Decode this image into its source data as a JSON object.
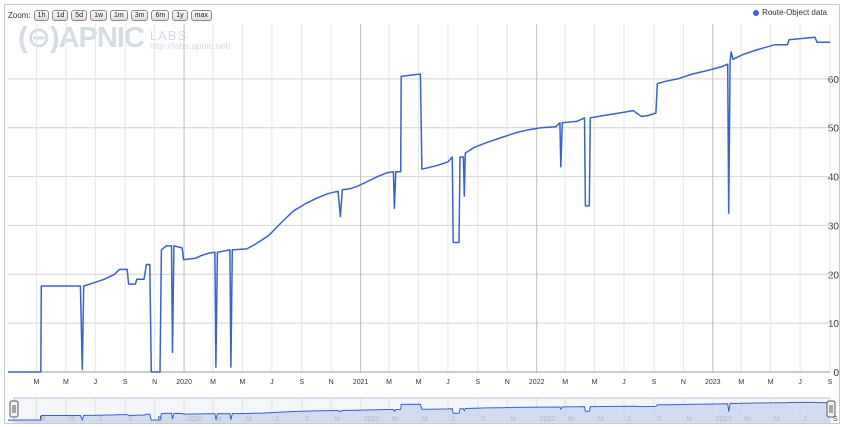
{
  "toolbar": {
    "zoom_label": "Zoom:",
    "buttons": [
      "1h",
      "1d",
      "5d",
      "1w",
      "1m",
      "3m",
      "6m",
      "1y",
      "max"
    ]
  },
  "watermark": {
    "logo": "(⊖)APNIC",
    "labs": "LABS",
    "url": "http://labs.apnic.net/"
  },
  "colors": {
    "series": "#3a62c9",
    "navigator_fill": "#c9d6ee",
    "grid": "#d4d4d4"
  },
  "chart_data": {
    "type": "line",
    "title": "",
    "xlabel": "",
    "ylabel": "",
    "legend": "top-right",
    "grid": true,
    "series": [
      {
        "name": "Route-Object data",
        "points": [
          [
            "2019-01-01",
            0
          ],
          [
            "2019-03-10",
            0
          ],
          [
            "2019-03-11",
            17.6
          ],
          [
            "2019-05-31",
            17.6
          ],
          [
            "2019-06-04",
            0.5
          ],
          [
            "2019-06-07",
            17.6
          ],
          [
            "2019-06-20",
            18
          ],
          [
            "2019-07-20",
            19
          ],
          [
            "2019-08-10",
            20
          ],
          [
            "2019-08-20",
            21
          ],
          [
            "2019-09-05",
            21
          ],
          [
            "2019-09-08",
            18
          ],
          [
            "2019-09-22",
            18
          ],
          [
            "2019-09-25",
            19
          ],
          [
            "2019-10-10",
            19
          ],
          [
            "2019-10-15",
            22
          ],
          [
            "2019-10-22",
            22
          ],
          [
            "2019-10-25",
            0
          ],
          [
            "2019-11-12",
            0
          ],
          [
            "2019-11-15",
            25
          ],
          [
            "2019-11-25",
            25.8
          ],
          [
            "2019-12-06",
            25.8
          ],
          [
            "2019-12-08",
            4
          ],
          [
            "2019-12-11",
            25.8
          ],
          [
            "2019-12-28",
            25.4
          ],
          [
            "2019-12-31",
            23
          ],
          [
            "2020-01-25",
            23.3
          ],
          [
            "2020-02-05",
            23.8
          ],
          [
            "2020-02-20",
            24.3
          ],
          [
            "2020-03-05",
            24.5
          ],
          [
            "2020-03-07",
            1
          ],
          [
            "2020-03-10",
            24.5
          ],
          [
            "2020-04-05",
            25
          ],
          [
            "2020-04-07",
            1
          ],
          [
            "2020-04-10",
            25
          ],
          [
            "2020-05-10",
            25.2
          ],
          [
            "2020-05-25",
            26
          ],
          [
            "2020-06-10",
            27
          ],
          [
            "2020-06-25",
            28
          ],
          [
            "2020-07-10",
            29.5
          ],
          [
            "2020-07-25",
            31
          ],
          [
            "2020-08-15",
            33
          ],
          [
            "2020-09-10",
            34.5
          ],
          [
            "2020-09-30",
            35.5
          ],
          [
            "2020-10-25",
            36.5
          ],
          [
            "2020-11-15",
            37
          ],
          [
            "2020-11-20",
            31.8
          ],
          [
            "2020-11-24",
            37.3
          ],
          [
            "2020-12-10",
            37.5
          ],
          [
            "2020-12-25",
            38
          ],
          [
            "2021-01-15",
            39
          ],
          [
            "2021-02-05",
            40
          ],
          [
            "2021-02-25",
            40.8
          ],
          [
            "2021-03-10",
            41
          ],
          [
            "2021-03-12",
            33.5
          ],
          [
            "2021-03-15",
            41
          ],
          [
            "2021-03-25",
            41
          ],
          [
            "2021-03-26",
            60.5
          ],
          [
            "2021-05-05",
            61
          ],
          [
            "2021-05-08",
            41.5
          ],
          [
            "2021-05-20",
            41.8
          ],
          [
            "2021-06-10",
            42.3
          ],
          [
            "2021-07-01",
            43
          ],
          [
            "2021-07-10",
            44
          ],
          [
            "2021-07-12",
            26.5
          ],
          [
            "2021-07-24",
            26.5
          ],
          [
            "2021-07-26",
            44
          ],
          [
            "2021-08-02",
            44
          ],
          [
            "2021-08-04",
            36
          ],
          [
            "2021-08-06",
            44.8
          ],
          [
            "2021-08-25",
            46
          ],
          [
            "2021-09-20",
            47
          ],
          [
            "2021-10-20",
            48
          ],
          [
            "2021-11-20",
            49
          ],
          [
            "2021-12-15",
            49.6
          ],
          [
            "2022-01-10",
            50
          ],
          [
            "2022-02-10",
            50.2
          ],
          [
            "2022-02-18",
            51
          ],
          [
            "2022-02-20",
            42
          ],
          [
            "2022-02-23",
            51
          ],
          [
            "2022-03-25",
            51.3
          ],
          [
            "2022-04-10",
            52
          ],
          [
            "2022-04-12",
            34
          ],
          [
            "2022-04-20",
            34
          ],
          [
            "2022-04-22",
            52
          ],
          [
            "2022-05-20",
            52.5
          ],
          [
            "2022-06-20",
            53
          ],
          [
            "2022-07-20",
            53.5
          ],
          [
            "2022-08-06",
            52.3
          ],
          [
            "2022-08-20",
            52.5
          ],
          [
            "2022-09-05",
            53
          ],
          [
            "2022-09-08",
            59
          ],
          [
            "2022-09-25",
            59.5
          ],
          [
            "2022-10-20",
            60
          ],
          [
            "2022-11-20",
            61
          ],
          [
            "2022-12-20",
            61.7
          ],
          [
            "2023-01-20",
            62.5
          ],
          [
            "2023-02-01",
            63
          ],
          [
            "2023-02-03",
            32.5
          ],
          [
            "2023-02-06",
            63.5
          ],
          [
            "2023-02-08",
            65.5
          ],
          [
            "2023-02-12",
            64
          ],
          [
            "2023-03-05",
            65
          ],
          [
            "2023-04-05",
            66
          ],
          [
            "2023-05-10",
            67
          ],
          [
            "2023-06-05",
            67
          ],
          [
            "2023-06-08",
            68
          ],
          [
            "2023-07-10",
            68.3
          ],
          [
            "2023-08-01",
            68.5
          ],
          [
            "2023-08-05",
            67.5
          ],
          [
            "2023-09-01",
            67.5
          ]
        ]
      }
    ],
    "xlim": [
      "2019-01-01",
      "2023-09-01"
    ],
    "ylim": [
      0,
      70
    ],
    "yticks": [
      0,
      10,
      20,
      30,
      40,
      50,
      60
    ],
    "ytick_labels": [
      "0",
      "10",
      "20",
      "30",
      "40",
      "50",
      "60"
    ],
    "xticks": [
      {
        "date": "2019-03-01",
        "label": "M"
      },
      {
        "date": "2019-05-01",
        "label": "M"
      },
      {
        "date": "2019-07-01",
        "label": "J"
      },
      {
        "date": "2019-09-01",
        "label": "S"
      },
      {
        "date": "2019-11-01",
        "label": "N"
      },
      {
        "date": "2020-01-01",
        "label": "2020",
        "year": true
      },
      {
        "date": "2020-03-01",
        "label": "M"
      },
      {
        "date": "2020-05-01",
        "label": "M"
      },
      {
        "date": "2020-07-01",
        "label": "J"
      },
      {
        "date": "2020-09-01",
        "label": "S"
      },
      {
        "date": "2020-11-01",
        "label": "N"
      },
      {
        "date": "2021-01-01",
        "label": "2021",
        "year": true
      },
      {
        "date": "2021-03-01",
        "label": "M"
      },
      {
        "date": "2021-05-01",
        "label": "M"
      },
      {
        "date": "2021-07-01",
        "label": "J"
      },
      {
        "date": "2021-09-01",
        "label": "S"
      },
      {
        "date": "2021-11-01",
        "label": "N"
      },
      {
        "date": "2022-01-01",
        "label": "2022",
        "year": true
      },
      {
        "date": "2022-03-01",
        "label": "M"
      },
      {
        "date": "2022-05-01",
        "label": "M"
      },
      {
        "date": "2022-07-01",
        "label": "J"
      },
      {
        "date": "2022-09-01",
        "label": "S"
      },
      {
        "date": "2022-11-01",
        "label": "N"
      },
      {
        "date": "2023-01-01",
        "label": "2023",
        "year": true
      },
      {
        "date": "2023-03-01",
        "label": "M"
      },
      {
        "date": "2023-05-01",
        "label": "M"
      },
      {
        "date": "2023-07-01",
        "label": "J"
      },
      {
        "date": "2023-09-01",
        "label": "S"
      }
    ],
    "navigator_xticks": [
      {
        "date": "2019-03-01",
        "label": "M"
      },
      {
        "date": "2019-05-01",
        "label": "M"
      },
      {
        "date": "2019-07-01",
        "label": "J"
      },
      {
        "date": "2019-09-01",
        "label": "S"
      },
      {
        "date": "2019-11-01",
        "label": "N"
      },
      {
        "date": "2020-01-01",
        "label": "2020"
      },
      {
        "date": "2020-03-01",
        "label": "M"
      },
      {
        "date": "2020-05-01",
        "label": "M"
      },
      {
        "date": "2020-07-01",
        "label": "J"
      },
      {
        "date": "2020-09-01",
        "label": "S"
      },
      {
        "date": "2020-11-01",
        "label": "N"
      },
      {
        "date": "2021-01-01",
        "label": "2021"
      },
      {
        "date": "2021-03-01",
        "label": "M"
      },
      {
        "date": "2021-05-01",
        "label": "M"
      },
      {
        "date": "2021-07-01",
        "label": "J"
      },
      {
        "date": "2021-09-01",
        "label": "S"
      },
      {
        "date": "2021-11-01",
        "label": "N"
      },
      {
        "date": "2022-01-01",
        "label": "2022"
      },
      {
        "date": "2022-03-01",
        "label": "M"
      },
      {
        "date": "2022-05-01",
        "label": "M"
      },
      {
        "date": "2022-07-01",
        "label": "J"
      },
      {
        "date": "2022-09-01",
        "label": "S"
      },
      {
        "date": "2022-11-01",
        "label": "N"
      },
      {
        "date": "2023-01-01",
        "label": "2023"
      },
      {
        "date": "2023-03-01",
        "label": "M"
      },
      {
        "date": "2023-05-01",
        "label": "M"
      },
      {
        "date": "2023-07-01",
        "label": "J"
      },
      {
        "date": "2023-09-01",
        "label": "S"
      }
    ]
  }
}
